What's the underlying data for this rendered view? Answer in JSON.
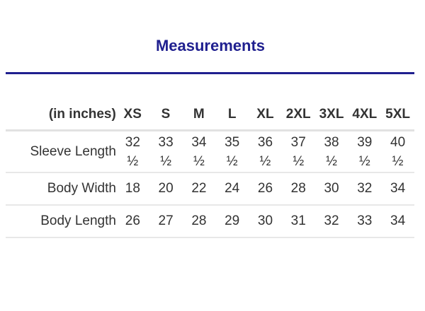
{
  "title": "Measurements",
  "table": {
    "unit_label": "(in inches)",
    "sizes": [
      "XS",
      "S",
      "M",
      "L",
      "XL",
      "2XL",
      "3XL",
      "4XL",
      "5XL"
    ],
    "rows": [
      {
        "label": "Sleeve Length",
        "values": [
          "32 ½",
          "33 ½",
          "34 ½",
          "35 ½",
          "36 ½",
          "37 ½",
          "38 ½",
          "39 ½",
          "40 ½"
        ]
      },
      {
        "label": "Body Width",
        "values": [
          "18",
          "20",
          "22",
          "24",
          "26",
          "28",
          "30",
          "32",
          "34"
        ]
      },
      {
        "label": "Body Length",
        "values": [
          "26",
          "27",
          "28",
          "29",
          "30",
          "31",
          "32",
          "33",
          "34"
        ]
      }
    ]
  },
  "colors": {
    "accent": "#1f1f8f",
    "text": "#333333",
    "divider": "#e2e2e2"
  }
}
